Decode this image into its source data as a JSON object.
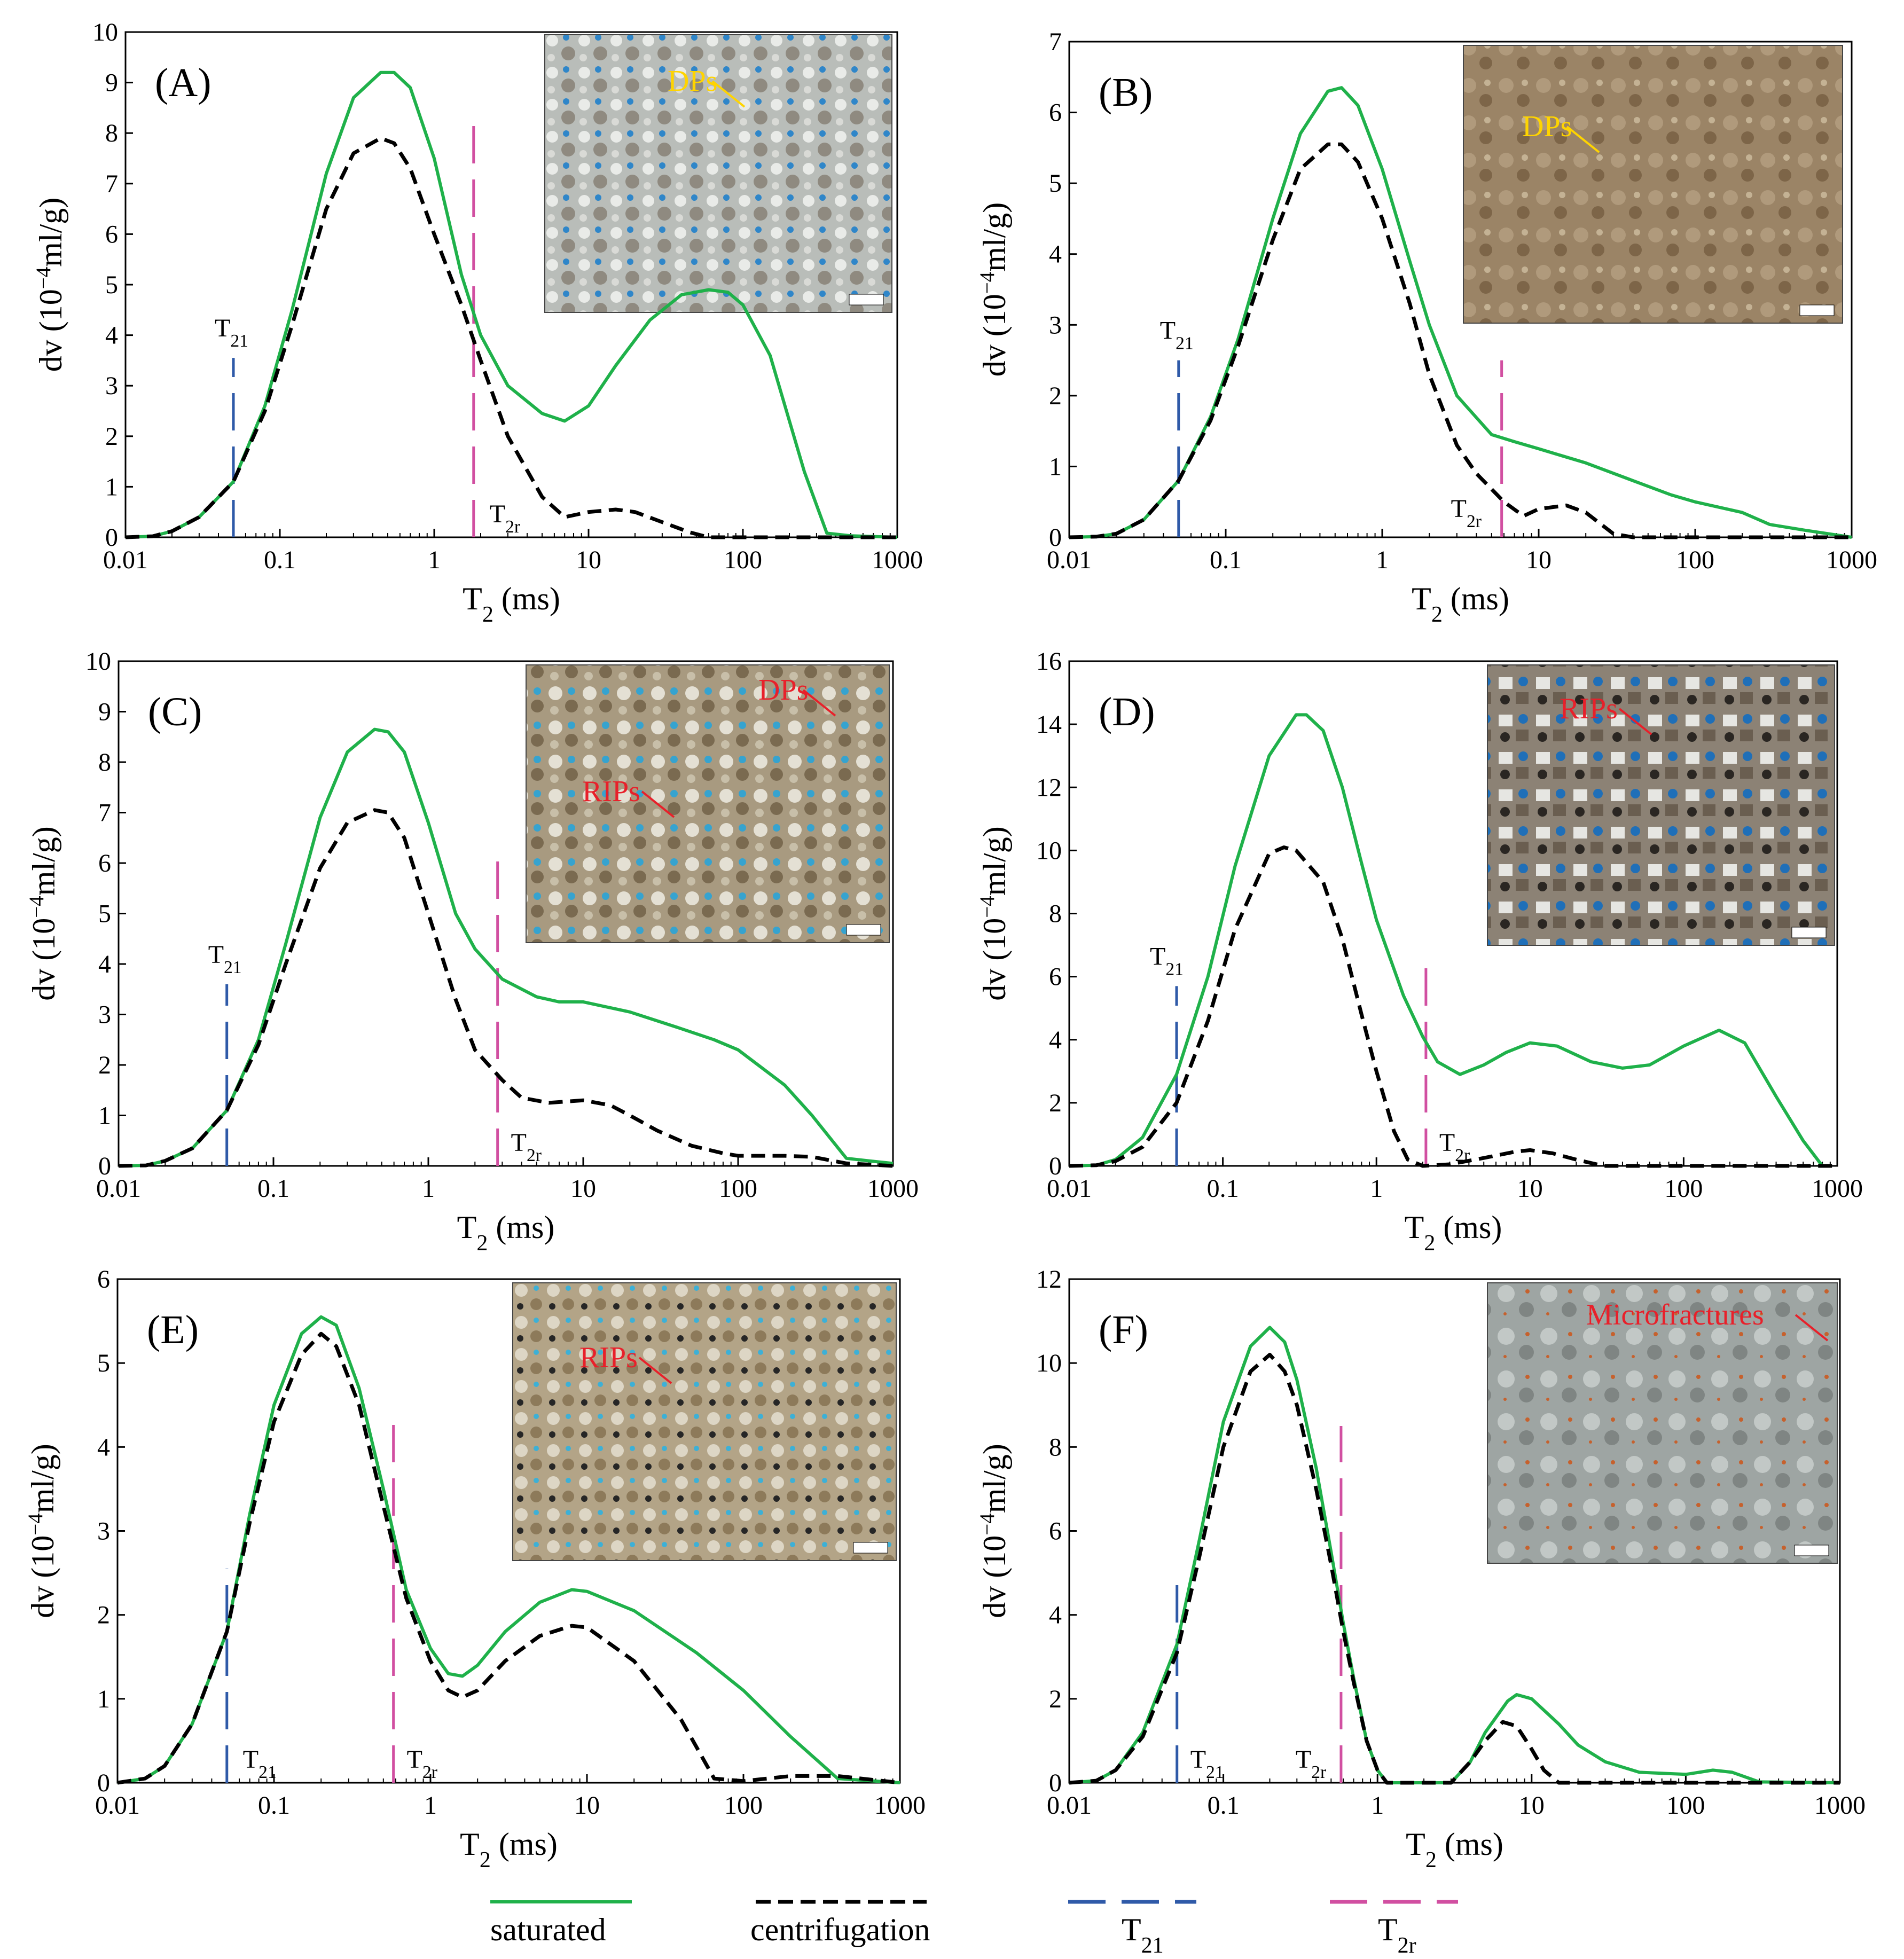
{
  "legend": [
    {
      "key": "saturated",
      "label": "saturated",
      "color": "#1fb14a",
      "dash": "none"
    },
    {
      "key": "centrifugation",
      "label": "centrifugation",
      "color": "#000000",
      "dash": "28 14"
    },
    {
      "key": "t21",
      "label": "T",
      "sub": "21",
      "color": "#2f5aa8",
      "dash": "70 30"
    },
    {
      "key": "t2r",
      "label": "T",
      "sub": "2r",
      "color": "#d14fa1",
      "dash": "70 30"
    }
  ],
  "chart_data": [
    {
      "id": "A",
      "tag": "(A)",
      "type": "line",
      "xscale": "log",
      "xlim": [
        0.01,
        1000
      ],
      "ylim": [
        0,
        10
      ],
      "xticks": [
        0.01,
        0.1,
        1,
        10,
        100,
        1000
      ],
      "xticklabels": [
        "0.01",
        "0.1",
        "1",
        "10",
        "100",
        "1000"
      ],
      "yticks": [
        0,
        1,
        2,
        3,
        4,
        5,
        6,
        7,
        8,
        9,
        10
      ],
      "xlabel": "T",
      "xlabel_sub": "2",
      "xlabel_unit": " (ms)",
      "ylabel": "dv (10",
      "ylabel_sup": "−4",
      "ylabel_unit": "ml/g)",
      "t21": {
        "x": 0.05,
        "ymax": 3.55,
        "label": "T",
        "sub": "21"
      },
      "t2r": {
        "x": 1.8,
        "ymax": 8.3,
        "label": "T",
        "sub": "2r"
      },
      "photo_labels": [
        {
          "text": "DPs",
          "color": "#ffd400"
        }
      ],
      "series": [
        {
          "name": "saturated",
          "x": [
            0.01,
            0.015,
            0.02,
            0.03,
            0.05,
            0.08,
            0.12,
            0.2,
            0.3,
            0.45,
            0.55,
            0.7,
            1,
            1.5,
            2,
            3,
            5,
            7,
            10,
            15,
            25,
            40,
            60,
            80,
            100,
            150,
            250,
            350,
            500,
            1000
          ],
          "y": [
            0,
            0.02,
            0.12,
            0.4,
            1.1,
            2.6,
            4.5,
            7.2,
            8.7,
            9.2,
            9.2,
            8.9,
            7.5,
            5.2,
            4.0,
            3.0,
            2.45,
            2.3,
            2.6,
            3.4,
            4.3,
            4.8,
            4.9,
            4.85,
            4.6,
            3.6,
            1.3,
            0.08,
            0.03,
            0
          ]
        },
        {
          "name": "centrifugation",
          "x": [
            0.01,
            0.015,
            0.02,
            0.03,
            0.05,
            0.08,
            0.12,
            0.2,
            0.3,
            0.45,
            0.55,
            0.7,
            1,
            1.5,
            2,
            3,
            5,
            7,
            10,
            15,
            20,
            30,
            45,
            60,
            100,
            300,
            1000
          ],
          "y": [
            0,
            0.02,
            0.12,
            0.4,
            1.1,
            2.5,
            4.2,
            6.5,
            7.6,
            7.9,
            7.8,
            7.3,
            6.0,
            4.6,
            3.5,
            2.0,
            0.8,
            0.4,
            0.5,
            0.55,
            0.5,
            0.3,
            0.1,
            0,
            0,
            0,
            0
          ]
        }
      ]
    },
    {
      "id": "B",
      "tag": "(B)",
      "type": "line",
      "xscale": "log",
      "xlim": [
        0.01,
        1000
      ],
      "ylim": [
        0,
        7
      ],
      "xticks": [
        0.01,
        0.1,
        1,
        10,
        100,
        1000
      ],
      "xticklabels": [
        "0.01",
        "0.1",
        "1",
        "10",
        "100",
        "1000"
      ],
      "yticks": [
        0,
        1,
        2,
        3,
        4,
        5,
        6,
        7
      ],
      "xlabel": "T",
      "xlabel_sub": "2",
      "xlabel_unit": " (ms)",
      "ylabel": "dv (10",
      "ylabel_sup": "−4",
      "ylabel_unit": "ml/g)",
      "t21": {
        "x": 0.05,
        "ymax": 2.5,
        "label": "T",
        "sub": "21"
      },
      "t2r": {
        "x": 5.8,
        "ymax": 2.5,
        "label": "T",
        "sub": "2r"
      },
      "photo_labels": [
        {
          "text": "DPs",
          "color": "#ffd400"
        }
      ],
      "series": [
        {
          "name": "saturated",
          "x": [
            0.01,
            0.015,
            0.02,
            0.03,
            0.05,
            0.08,
            0.12,
            0.2,
            0.3,
            0.45,
            0.55,
            0.7,
            1,
            1.5,
            2,
            3,
            5,
            7,
            10,
            20,
            40,
            70,
            100,
            200,
            300,
            500,
            1000
          ],
          "y": [
            0,
            0.01,
            0.05,
            0.25,
            0.8,
            1.7,
            2.8,
            4.5,
            5.7,
            6.3,
            6.35,
            6.1,
            5.2,
            3.9,
            3.0,
            2.0,
            1.45,
            1.35,
            1.25,
            1.05,
            0.8,
            0.6,
            0.5,
            0.35,
            0.18,
            0.1,
            0
          ]
        },
        {
          "name": "centrifugation",
          "x": [
            0.01,
            0.015,
            0.02,
            0.03,
            0.05,
            0.08,
            0.12,
            0.2,
            0.3,
            0.45,
            0.55,
            0.7,
            1,
            1.5,
            2,
            3,
            4,
            6,
            8,
            10,
            15,
            20,
            30,
            40,
            100,
            1000
          ],
          "y": [
            0,
            0.01,
            0.05,
            0.25,
            0.8,
            1.65,
            2.7,
            4.2,
            5.2,
            5.55,
            5.55,
            5.3,
            4.5,
            3.3,
            2.3,
            1.3,
            0.9,
            0.5,
            0.3,
            0.4,
            0.45,
            0.35,
            0.05,
            0,
            0,
            0
          ]
        }
      ]
    },
    {
      "id": "C",
      "tag": "(C)",
      "type": "line",
      "xscale": "log",
      "xlim": [
        0.01,
        1000
      ],
      "ylim": [
        0,
        10
      ],
      "xticks": [
        0.01,
        0.1,
        1,
        10,
        100,
        1000
      ],
      "xticklabels": [
        "0.01",
        "0.1",
        "1",
        "10",
        "100",
        "1000"
      ],
      "yticks": [
        0,
        1,
        2,
        3,
        4,
        5,
        6,
        7,
        8,
        9,
        10
      ],
      "xlabel": "T",
      "xlabel_sub": "2",
      "xlabel_unit": " (ms)",
      "ylabel": "dv (10",
      "ylabel_sup": "−4",
      "ylabel_unit": "ml/g)",
      "t21": {
        "x": 0.05,
        "ymax": 3.6,
        "label": "T",
        "sub": "21"
      },
      "t2r": {
        "x": 2.8,
        "ymax": 6.1,
        "label": "T",
        "sub": "2r"
      },
      "photo_labels": [
        {
          "text": "DPs",
          "color": "#e8202a"
        },
        {
          "text": "RIPs",
          "color": "#e8202a"
        }
      ],
      "series": [
        {
          "name": "saturated",
          "x": [
            0.01,
            0.015,
            0.02,
            0.03,
            0.05,
            0.08,
            0.12,
            0.2,
            0.3,
            0.45,
            0.55,
            0.7,
            1,
            1.5,
            2,
            3,
            5,
            7,
            10,
            20,
            40,
            70,
            100,
            200,
            300,
            500,
            700,
            1000
          ],
          "y": [
            0,
            0.01,
            0.1,
            0.35,
            1.1,
            2.5,
            4.4,
            6.9,
            8.2,
            8.65,
            8.6,
            8.2,
            6.8,
            5.0,
            4.3,
            3.7,
            3.35,
            3.25,
            3.25,
            3.05,
            2.75,
            2.5,
            2.3,
            1.6,
            1.0,
            0.15,
            0.1,
            0.05
          ]
        },
        {
          "name": "centrifugation",
          "x": [
            0.01,
            0.015,
            0.02,
            0.03,
            0.05,
            0.08,
            0.12,
            0.2,
            0.3,
            0.45,
            0.55,
            0.7,
            1,
            1.5,
            2,
            3,
            4,
            6,
            10,
            15,
            20,
            30,
            50,
            80,
            100,
            200,
            300,
            500,
            1000
          ],
          "y": [
            0,
            0.01,
            0.1,
            0.35,
            1.1,
            2.4,
            4.0,
            5.9,
            6.8,
            7.05,
            7.0,
            6.5,
            5.0,
            3.3,
            2.3,
            1.7,
            1.35,
            1.25,
            1.3,
            1.2,
            1.0,
            0.7,
            0.4,
            0.25,
            0.2,
            0.2,
            0.18,
            0.05,
            0
          ]
        }
      ]
    },
    {
      "id": "D",
      "tag": "(D)",
      "type": "line",
      "xscale": "log",
      "xlim": [
        0.01,
        1000
      ],
      "ylim": [
        0,
        16
      ],
      "xticks": [
        0.01,
        0.1,
        1,
        10,
        100,
        1000
      ],
      "xticklabels": [
        "0.01",
        "0.1",
        "1",
        "10",
        "100",
        "1000"
      ],
      "yticks": [
        0,
        2,
        4,
        6,
        8,
        10,
        12,
        14,
        16
      ],
      "xlabel": "T",
      "xlabel_sub": "2",
      "xlabel_unit": " (ms)",
      "ylabel": "dv (10",
      "ylabel_sup": "−4",
      "ylabel_unit": "ml/g)",
      "t21": {
        "x": 0.05,
        "ymax": 5.7,
        "label": "T",
        "sub": "21"
      },
      "t2r": {
        "x": 2.1,
        "ymax": 6.7,
        "label": "T",
        "sub": "2r"
      },
      "photo_labels": [
        {
          "text": "RIPs",
          "color": "#e8202a"
        }
      ],
      "series": [
        {
          "name": "saturated",
          "x": [
            0.01,
            0.015,
            0.02,
            0.03,
            0.05,
            0.08,
            0.12,
            0.2,
            0.3,
            0.35,
            0.45,
            0.6,
            0.8,
            1,
            1.5,
            2,
            2.5,
            3.5,
            5,
            7,
            10,
            15,
            25,
            40,
            60,
            100,
            170,
            250,
            400,
            600,
            800
          ],
          "y": [
            0,
            0.02,
            0.2,
            0.9,
            2.9,
            6.0,
            9.5,
            13.0,
            14.3,
            14.3,
            13.8,
            12.0,
            9.6,
            7.8,
            5.4,
            4.1,
            3.3,
            2.9,
            3.2,
            3.6,
            3.9,
            3.8,
            3.3,
            3.1,
            3.2,
            3.8,
            4.3,
            3.9,
            2.2,
            0.8,
            0
          ]
        },
        {
          "name": "centrifugation",
          "x": [
            0.01,
            0.015,
            0.02,
            0.03,
            0.05,
            0.08,
            0.12,
            0.2,
            0.25,
            0.3,
            0.45,
            0.6,
            0.8,
            1,
            1.3,
            1.6,
            2,
            3,
            5,
            8,
            10,
            14,
            20,
            30,
            1000
          ],
          "y": [
            0,
            0.02,
            0.15,
            0.6,
            2.0,
            4.6,
            7.5,
            9.9,
            10.1,
            10.0,
            9.0,
            7.2,
            4.8,
            3.0,
            1.1,
            0.2,
            0,
            0.05,
            0.25,
            0.45,
            0.5,
            0.4,
            0.2,
            0,
            0
          ]
        }
      ]
    },
    {
      "id": "E",
      "tag": "(E)",
      "type": "line",
      "xscale": "log",
      "xlim": [
        0.01,
        1000
      ],
      "ylim": [
        0,
        6
      ],
      "xticks": [
        0.01,
        0.1,
        1,
        10,
        100,
        1000
      ],
      "xticklabels": [
        "0.01",
        "0.1",
        "1",
        "10",
        "100",
        "1000"
      ],
      "yticks": [
        0,
        1,
        2,
        3,
        4,
        5,
        6
      ],
      "xlabel": "T",
      "xlabel_sub": "2",
      "xlabel_unit": " (ms)",
      "ylabel": "dv (10",
      "ylabel_sup": "−4",
      "ylabel_unit": "ml/g)",
      "t21": {
        "x": 0.05,
        "ymax": 2.55,
        "label": "T",
        "sub": "21"
      },
      "t2r": {
        "x": 0.58,
        "ymax": 4.4,
        "label": "T",
        "sub": "2r"
      },
      "photo_labels": [
        {
          "text": "RIPs",
          "color": "#e8202a"
        }
      ],
      "series": [
        {
          "name": "saturated",
          "x": [
            0.01,
            0.015,
            0.02,
            0.03,
            0.05,
            0.07,
            0.1,
            0.15,
            0.2,
            0.25,
            0.35,
            0.5,
            0.7,
            1,
            1.3,
            1.6,
            2,
            3,
            5,
            8,
            10,
            20,
            50,
            100,
            200,
            400,
            1000
          ],
          "y": [
            0,
            0.05,
            0.2,
            0.7,
            1.8,
            3.2,
            4.5,
            5.35,
            5.55,
            5.45,
            4.7,
            3.5,
            2.3,
            1.6,
            1.3,
            1.27,
            1.4,
            1.8,
            2.15,
            2.3,
            2.28,
            2.05,
            1.55,
            1.1,
            0.55,
            0.05,
            0
          ]
        },
        {
          "name": "centrifugation",
          "x": [
            0.01,
            0.015,
            0.02,
            0.03,
            0.05,
            0.07,
            0.1,
            0.15,
            0.2,
            0.25,
            0.35,
            0.5,
            0.7,
            1,
            1.3,
            1.6,
            2,
            3,
            5,
            8,
            10,
            20,
            40,
            65,
            100,
            200,
            400,
            1000
          ],
          "y": [
            0,
            0.05,
            0.2,
            0.7,
            1.8,
            3.1,
            4.3,
            5.1,
            5.35,
            5.2,
            4.5,
            3.3,
            2.2,
            1.45,
            1.1,
            1.02,
            1.1,
            1.45,
            1.75,
            1.87,
            1.85,
            1.45,
            0.75,
            0.05,
            0.02,
            0.08,
            0.08,
            0
          ]
        }
      ]
    },
    {
      "id": "F",
      "tag": "(F)",
      "type": "line",
      "xscale": "log",
      "xlim": [
        0.01,
        1000
      ],
      "ylim": [
        0,
        12
      ],
      "xticks": [
        0.01,
        0.1,
        1,
        10,
        100,
        1000
      ],
      "xticklabels": [
        "0.01",
        "0.1",
        "1",
        "10",
        "100",
        "1000"
      ],
      "yticks": [
        0,
        2,
        4,
        6,
        8,
        10,
        12
      ],
      "xlabel": "T",
      "xlabel_sub": "2",
      "xlabel_unit": " (ms)",
      "ylabel": "dv (10",
      "ylabel_sup": "−4",
      "ylabel_unit": "ml/g)",
      "t21": {
        "x": 0.05,
        "ymax": 4.8,
        "label": "T",
        "sub": "21"
      },
      "t2r": {
        "x": 0.58,
        "ymax": 8.5,
        "label": "T",
        "sub": "2r"
      },
      "photo_labels": [
        {
          "text": "Microfractures",
          "color": "#e8202a"
        }
      ],
      "series": [
        {
          "name": "saturated",
          "x": [
            0.01,
            0.015,
            0.02,
            0.03,
            0.05,
            0.07,
            0.1,
            0.15,
            0.2,
            0.25,
            0.3,
            0.4,
            0.5,
            0.6,
            0.7,
            0.85,
            1,
            1.15,
            2,
            3,
            4,
            5,
            7,
            8,
            10,
            15,
            20,
            30,
            50,
            100,
            150,
            200,
            300,
            1000
          ],
          "y": [
            0,
            0.05,
            0.3,
            1.2,
            3.3,
            5.8,
            8.6,
            10.4,
            10.85,
            10.5,
            9.6,
            7.5,
            5.5,
            3.8,
            2.5,
            1.0,
            0.3,
            0,
            0,
            0,
            0.5,
            1.2,
            1.95,
            2.1,
            2.0,
            1.4,
            0.9,
            0.5,
            0.25,
            0.2,
            0.3,
            0.25,
            0.02,
            0
          ]
        },
        {
          "name": "centrifugation",
          "x": [
            0.01,
            0.015,
            0.02,
            0.03,
            0.05,
            0.07,
            0.1,
            0.15,
            0.2,
            0.25,
            0.3,
            0.4,
            0.5,
            0.6,
            0.7,
            0.85,
            1,
            1.15,
            2,
            3,
            4,
            5,
            6.5,
            8,
            10,
            12,
            15,
            1000
          ],
          "y": [
            0,
            0.05,
            0.3,
            1.1,
            3.1,
            5.4,
            8.0,
            9.8,
            10.2,
            9.8,
            9.0,
            7.0,
            5.2,
            3.6,
            2.4,
            1.0,
            0.3,
            0,
            0,
            0,
            0.5,
            1.0,
            1.45,
            1.35,
            0.8,
            0.3,
            0,
            0
          ]
        }
      ]
    }
  ]
}
